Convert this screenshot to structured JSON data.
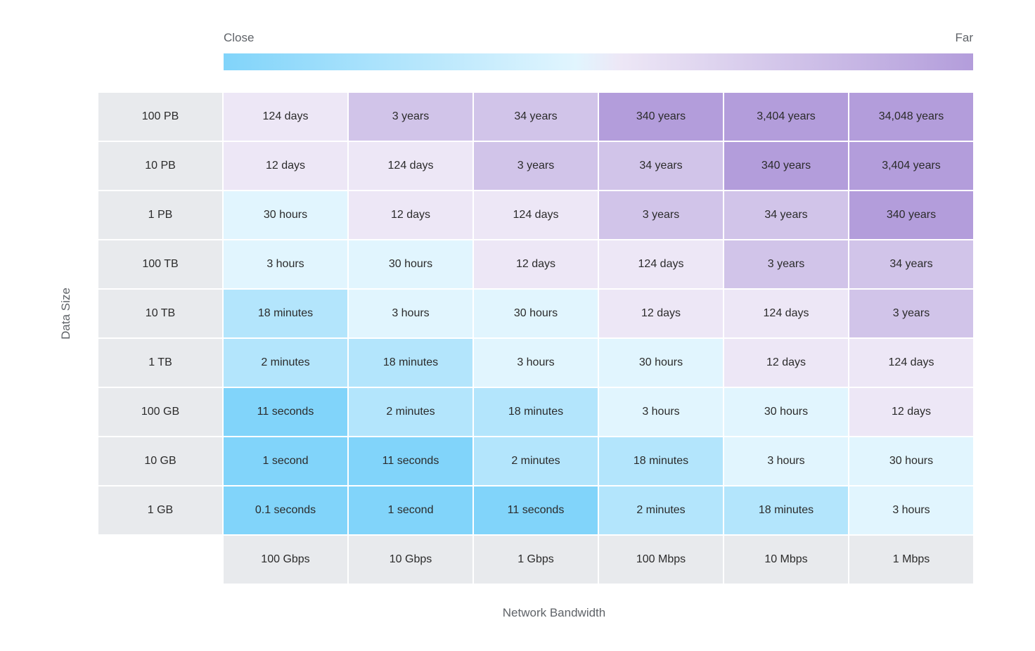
{
  "chart_data": {
    "type": "heatmap",
    "legend": {
      "low_label": "Close",
      "high_label": "Far",
      "gradient_colors": [
        "#81d4fa",
        "#e1f5fe",
        "#ede7f6",
        "#b39ddb"
      ]
    },
    "xlabel": "Network Bandwidth",
    "ylabel": "Data Size",
    "columns": [
      "100 Gbps",
      "10 Gbps",
      "1 Gbps",
      "100 Mbps",
      "10 Mbps",
      "1 Mbps"
    ],
    "rows": [
      "100 PB",
      "10 PB",
      "1 PB",
      "100 TB",
      "10 TB",
      "1 TB",
      "100 GB",
      "10 GB",
      "1 GB"
    ],
    "values": [
      [
        "124 days",
        "3 years",
        "34 years",
        "340 years",
        "3,404 years",
        "34,048 years"
      ],
      [
        "12 days",
        "124 days",
        "3 years",
        "34 years",
        "340 years",
        "3,404 years"
      ],
      [
        "30 hours",
        "12 days",
        "124 days",
        "3 years",
        "34 years",
        "340 years"
      ],
      [
        "3 hours",
        "30 hours",
        "12 days",
        "124 days",
        "3 years",
        "34 years"
      ],
      [
        "18 minutes",
        "3 hours",
        "30 hours",
        "12 days",
        "124 days",
        "3 years"
      ],
      [
        "2 minutes",
        "18 minutes",
        "3 hours",
        "30 hours",
        "12 days",
        "124 days"
      ],
      [
        "11 seconds",
        "2 minutes",
        "18 minutes",
        "3 hours",
        "30 hours",
        "12 days"
      ],
      [
        "1 second",
        "11 seconds",
        "2 minutes",
        "18 minutes",
        "3 hours",
        "30 hours"
      ],
      [
        "0.1 seconds",
        "1 second",
        "11 seconds",
        "2 minutes",
        "18 minutes",
        "3 hours"
      ]
    ],
    "levels": [
      [
        3,
        4,
        4,
        5,
        5,
        5
      ],
      [
        3,
        3,
        4,
        4,
        5,
        5
      ],
      [
        2,
        3,
        3,
        4,
        4,
        5
      ],
      [
        2,
        2,
        3,
        3,
        4,
        4
      ],
      [
        1,
        2,
        2,
        3,
        3,
        4
      ],
      [
        1,
        1,
        2,
        2,
        3,
        3
      ],
      [
        0,
        1,
        1,
        2,
        2,
        3
      ],
      [
        0,
        0,
        1,
        1,
        2,
        2
      ],
      [
        0,
        0,
        0,
        1,
        1,
        2
      ]
    ],
    "level_colors": [
      "#81d4fa",
      "#b3e5fc",
      "#e1f5fe",
      "#ede7f6",
      "#d1c4e9",
      "#b39ddb"
    ],
    "header_color": "#e8eaed"
  }
}
